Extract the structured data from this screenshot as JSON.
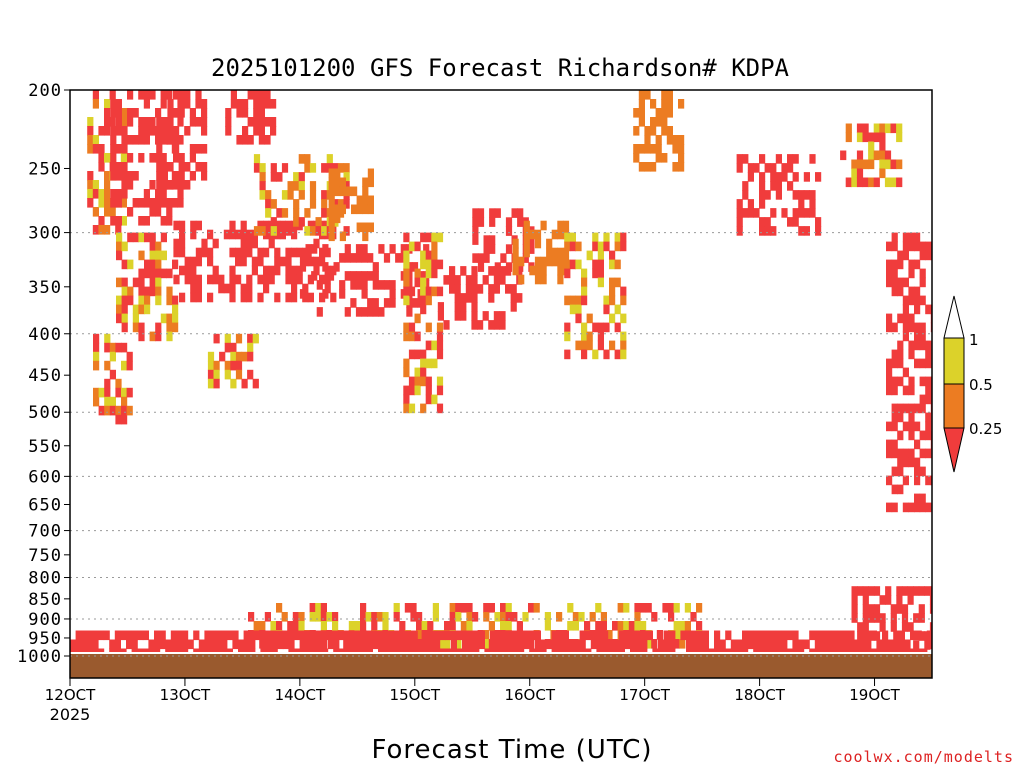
{
  "chart_data": {
    "type": "heatmap",
    "title": "2025101200 GFS Forecast Richardson# KDPA",
    "xlabel": "Forecast Time (UTC)",
    "ylabel": "",
    "y_scale": "log",
    "y_reversed": true,
    "ylim": [
      1000,
      200
    ],
    "xlim": [
      12.0,
      19.5
    ],
    "x_ticks": [
      "12OCT",
      "13OCT",
      "14OCT",
      "15OCT",
      "16OCT",
      "17OCT",
      "18OCT",
      "19OCT"
    ],
    "x_tick_values": [
      12,
      13,
      14,
      15,
      16,
      17,
      18,
      19
    ],
    "x_sublabel": "2025",
    "y_ticks": [
      200,
      250,
      300,
      350,
      400,
      450,
      500,
      550,
      600,
      650,
      700,
      750,
      800,
      850,
      900,
      950,
      1000
    ],
    "grid_levels": [
      300,
      400,
      500,
      600,
      700,
      800,
      900,
      1000
    ],
    "grid": "dotted horizontal",
    "colorbar": {
      "placement": "right",
      "labels": [
        "1",
        "0.5",
        "0.25"
      ],
      "bins": [
        {
          "label": "<0.25",
          "color": "#f03c3c"
        },
        {
          "label": "0.25-0.5",
          "color": "#ec7c22"
        },
        {
          "label": "0.5-1",
          "color": "#dcd22a"
        }
      ]
    },
    "ground_color": "#9a5a2e",
    "patches": [
      {
        "x": [
          12.15,
          12.45
        ],
        "p": [
          200,
          300
        ],
        "ri": "mixed"
      },
      {
        "x": [
          12.2,
          12.5
        ],
        "p": [
          400,
          510
        ],
        "ri": "mixed"
      },
      {
        "x": [
          12.35,
          12.95
        ],
        "p": [
          200,
          290
        ],
        "ri": "<0.25"
      },
      {
        "x": [
          12.4,
          12.9
        ],
        "p": [
          300,
          400
        ],
        "ri": "mixed"
      },
      {
        "x": [
          12.75,
          13.15
        ],
        "p": [
          200,
          260
        ],
        "ri": "<0.25"
      },
      {
        "x": [
          12.9,
          14.3
        ],
        "p": [
          290,
          360
        ],
        "ri": "<0.25"
      },
      {
        "x": [
          13.2,
          13.6
        ],
        "p": [
          400,
          460
        ],
        "ri": "mixed"
      },
      {
        "x": [
          13.35,
          13.75
        ],
        "p": [
          200,
          230
        ],
        "ri": "<0.25"
      },
      {
        "x": [
          13.6,
          14.4
        ],
        "p": [
          240,
          300
        ],
        "ri": "mixed"
      },
      {
        "x": [
          14.0,
          15.1
        ],
        "p": [
          310,
          380
        ],
        "ri": "<0.25"
      },
      {
        "x": [
          14.25,
          14.6
        ],
        "p": [
          250,
          300
        ],
        "ri": "0.25-0.5"
      },
      {
        "x": [
          14.9,
          15.2
        ],
        "p": [
          300,
          500
        ],
        "ri": "mixed"
      },
      {
        "x": [
          15.2,
          15.9
        ],
        "p": [
          330,
          390
        ],
        "ri": "<0.25"
      },
      {
        "x": [
          15.5,
          16.0
        ],
        "p": [
          280,
          330
        ],
        "ri": "<0.25"
      },
      {
        "x": [
          15.85,
          16.3
        ],
        "p": [
          290,
          340
        ],
        "ri": "0.25-0.5"
      },
      {
        "x": [
          16.3,
          16.8
        ],
        "p": [
          300,
          420
        ],
        "ri": "mixed"
      },
      {
        "x": [
          16.9,
          17.3
        ],
        "p": [
          200,
          250
        ],
        "ri": "0.25-0.5"
      },
      {
        "x": [
          17.8,
          18.5
        ],
        "p": [
          240,
          300
        ],
        "ri": "<0.25"
      },
      {
        "x": [
          18.7,
          19.2
        ],
        "p": [
          220,
          260
        ],
        "ri": "mixed"
      },
      {
        "x": [
          19.1,
          19.5
        ],
        "p": [
          300,
          650
        ],
        "ri": "<0.25"
      },
      {
        "x": [
          18.8,
          19.5
        ],
        "p": [
          820,
          960
        ],
        "ri": "<0.25"
      },
      {
        "x": [
          13.5,
          17.5
        ],
        "p": [
          860,
          960
        ],
        "ri": "mixed"
      },
      {
        "x": [
          12.0,
          19.5
        ],
        "p": [
          930,
          990
        ],
        "ri": "<0.25"
      }
    ]
  },
  "branding": {
    "site": "coolwx.com/modelts"
  }
}
